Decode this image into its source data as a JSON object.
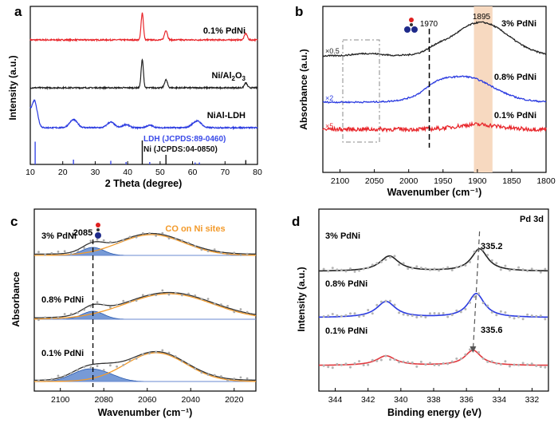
{
  "panels": [
    {
      "letter": "a"
    },
    {
      "letter": "b"
    },
    {
      "letter": "c"
    },
    {
      "letter": "d"
    }
  ],
  "chart_data": [
    {
      "panel": "a",
      "type": "line",
      "xlabel": "2 Theta (degree)",
      "ylabel": "Intensity (a.u.)",
      "xlim": [
        10,
        80
      ],
      "x_ticks": [
        10,
        20,
        30,
        40,
        50,
        60,
        70,
        80
      ],
      "x_tick_labels": [
        "10",
        "20",
        "30",
        "40",
        "50",
        "60",
        "70",
        "80"
      ],
      "series": [
        {
          "name": "0.1% PdNi",
          "color": "#e8262b",
          "peaks": [
            44.5,
            51.8,
            76.4
          ]
        },
        {
          "name": "Ni/Al2O3",
          "color": "#222222",
          "peaks": [
            44.5,
            51.8,
            76.4
          ]
        },
        {
          "name": "NiAl-LDH",
          "color": "#2a3ae0",
          "peaks": [
            11.5,
            23.3,
            34.8,
            39.5,
            46.8,
            60.8,
            62.1
          ]
        }
      ],
      "reference_lines": [
        {
          "name": "LDH (JCPDS:89-0460)",
          "color": "#3a4ae8",
          "positions": [
            11.5,
            23.3,
            34.8,
            39.5,
            46.8,
            60.8,
            62.1
          ],
          "heights": [
            0.95,
            0.2,
            0.15,
            0.1,
            0.1,
            0.08,
            0.08
          ]
        },
        {
          "name": "Ni (JCPDS:04-0850)",
          "color": "#111111",
          "positions": [
            44.5,
            51.8,
            76.4
          ],
          "heights": [
            1.0,
            0.4,
            0.18
          ]
        }
      ]
    },
    {
      "panel": "b",
      "type": "line",
      "xlabel": "Wavenumber (cm⁻¹)",
      "ylabel": "Absorbance (a.u.)",
      "xlim": [
        2125,
        1800
      ],
      "x_ticks": [
        2100,
        2050,
        2000,
        1950,
        1900,
        1850,
        1800
      ],
      "x_tick_labels": [
        "2100",
        "2050",
        "2000",
        "1950",
        "1900",
        "1850",
        "1800"
      ],
      "annotations": [
        "1970",
        "1895"
      ],
      "series": [
        {
          "name": "3% PdNi",
          "scale": "×0.5",
          "color": "#222222",
          "peak": 1895
        },
        {
          "name": "0.8% PdNi",
          "scale": "×2",
          "color": "#2a3ae0",
          "peak": 1930
        },
        {
          "name": "0.1% PdNi",
          "scale": "×5",
          "color": "#e8262b",
          "peak": null
        }
      ],
      "marked_position": 1970,
      "shaded_band": [
        1905,
        1878
      ]
    },
    {
      "panel": "c",
      "type": "line",
      "xlabel": "Wavenumber (cm⁻¹)",
      "ylabel": "Absorbance",
      "xlim": [
        2112,
        2010
      ],
      "x_ticks": [
        2100,
        2080,
        2060,
        2040,
        2020
      ],
      "x_tick_labels": [
        "2100",
        "2080",
        "2060",
        "2040",
        "2020"
      ],
      "annotations": [
        "2085",
        "CO on Ni sites"
      ],
      "marked_position": 2085,
      "series": [
        {
          "name": "3% PdNi",
          "peak_total": 2060,
          "peak_ni": 2058,
          "peak_pd": 2085
        },
        {
          "name": "0.8% PdNi",
          "peak_total": 2050,
          "peak_ni": 2050,
          "peak_pd": 2085
        },
        {
          "name": "0.1% PdNi",
          "peak_total": 2058,
          "peak_ni": 2056,
          "peak_pd": 2088
        }
      ]
    },
    {
      "panel": "d",
      "type": "line",
      "title": "Pd 3d",
      "xlabel": "Binding energy (eV)",
      "ylabel": "Intensity (a.u.)",
      "xlim": [
        345,
        331
      ],
      "x_ticks": [
        344,
        342,
        340,
        338,
        336,
        334,
        332
      ],
      "x_tick_labels": [
        "344",
        "342",
        "340",
        "338",
        "336",
        "334",
        "332"
      ],
      "annotations": [
        "335.2",
        "335.6"
      ],
      "series": [
        {
          "name": "3% PdNi",
          "color": "#222222",
          "peaks": [
            340.7,
            335.2
          ]
        },
        {
          "name": "0.8% PdNi",
          "color": "#2a3ae0",
          "peaks": [
            340.9,
            335.4
          ]
        },
        {
          "name": "0.1% PdNi",
          "color": "#e0393e",
          "peaks": [
            340.9,
            335.6
          ]
        }
      ]
    }
  ]
}
